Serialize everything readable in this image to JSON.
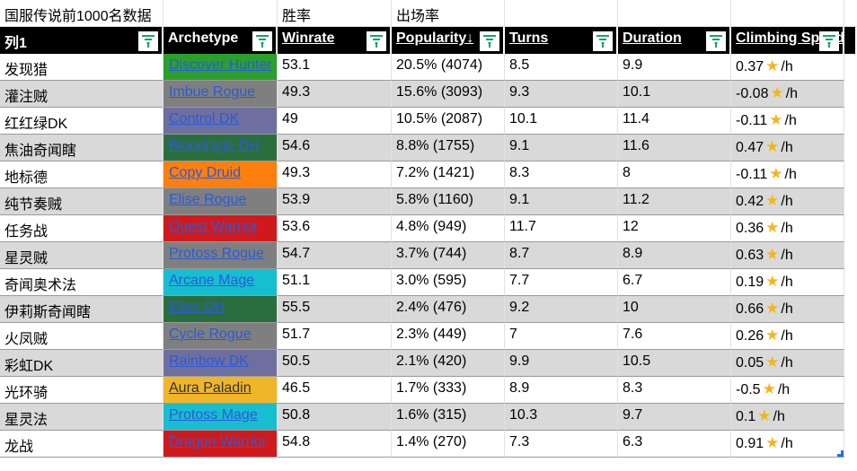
{
  "title_row": {
    "a": "国服传说前1000名数据",
    "c": "胜率",
    "d": "出场率"
  },
  "headers": [
    "列1",
    "Archetype",
    "Winrate",
    "Popularity↓",
    "Turns",
    "Duration",
    "Climbing Speed"
  ],
  "accent": "#1e9e6e",
  "rows": [
    {
      "name": "发现猎",
      "arch": "Discover Hunter",
      "color": "#2ca02c",
      "winrate": "53.1",
      "pop": "20.5% (4074)",
      "turns": "8.5",
      "duration": "9.9",
      "climb": "0.37"
    },
    {
      "name": "灌注贼",
      "arch": "Imbue Rogue",
      "color": "#7f7f7f",
      "winrate": "49.3",
      "pop": "15.6% (3093)",
      "turns": "9.3",
      "duration": "10.1",
      "climb": "-0.08"
    },
    {
      "name": "红红绿DK",
      "arch": "Control DK",
      "color": "#6f6f9f",
      "winrate": "49",
      "pop": "10.5% (2087)",
      "turns": "10.1",
      "duration": "11.4",
      "climb": "-0.11"
    },
    {
      "name": "焦油奇闻瞎",
      "arch": "Bloodrage DH",
      "color": "#2a6e3e",
      "winrate": "54.6",
      "pop": "8.8% (1755)",
      "turns": "9.1",
      "duration": "11.6",
      "climb": "0.47"
    },
    {
      "name": "地标德",
      "arch": "Copy Druid",
      "color": "#ff7f0e",
      "winrate": "49.3",
      "pop": "7.2% (1421)",
      "turns": "8.3",
      "duration": "8",
      "climb": "-0.11"
    },
    {
      "name": "纯节奏贼",
      "arch": "Elise Rogue",
      "color": "#7f7f7f",
      "winrate": "53.9",
      "pop": "5.8% (1160)",
      "turns": "9.1",
      "duration": "11.2",
      "climb": "0.42"
    },
    {
      "name": "任务战",
      "arch": "Quest Warrior",
      "color": "#d0191c",
      "winrate": "53.6",
      "pop": "4.8% (949)",
      "turns": "11.7",
      "duration": "12",
      "climb": "0.36"
    },
    {
      "name": "星灵贼",
      "arch": "Protoss Rogue",
      "color": "#7f7f7f",
      "winrate": "54.7",
      "pop": "3.7% (744)",
      "turns": "8.7",
      "duration": "8.9",
      "climb": "0.63"
    },
    {
      "name": "奇闻奥术法",
      "arch": "Arcane Mage",
      "color": "#17becf",
      "winrate": "51.1",
      "pop": "3.0% (595)",
      "turns": "7.7",
      "duration": "6.7",
      "climb": "0.19"
    },
    {
      "name": "伊莉斯奇闻瞎",
      "arch": "Elise DH",
      "color": "#2a6e3e",
      "winrate": "55.5",
      "pop": "2.4% (476)",
      "turns": "9.2",
      "duration": "10",
      "climb": "0.66"
    },
    {
      "name": "火凤贼",
      "arch": "Cycle Rogue",
      "color": "#7f7f7f",
      "winrate": "51.7",
      "pop": "2.3% (449)",
      "turns": "7",
      "duration": "7.6",
      "climb": "0.26"
    },
    {
      "name": "彩虹DK",
      "arch": "Rainbow DK",
      "color": "#6f6f9f",
      "winrate": "50.5",
      "pop": "2.1% (420)",
      "turns": "9.9",
      "duration": "10.5",
      "climb": "0.05"
    },
    {
      "name": "光环骑",
      "arch": "Aura Paladin",
      "color": "#f0b62a",
      "winrate": "46.5",
      "pop": "1.7% (333)",
      "turns": "8.9",
      "duration": "8.3",
      "climb": "-0.5"
    },
    {
      "name": "星灵法",
      "arch": "Protoss Mage",
      "color": "#17becf",
      "winrate": "50.8",
      "pop": "1.6% (315)",
      "turns": "10.3",
      "duration": "9.7",
      "climb": "0.1"
    },
    {
      "name": "龙战",
      "arch": "Dragon Warrior",
      "color": "#d0191c",
      "winrate": "54.8",
      "pop": "1.4% (270)",
      "turns": "7.3",
      "duration": "6.3",
      "climb": "0.91"
    }
  ],
  "unit": "/h"
}
